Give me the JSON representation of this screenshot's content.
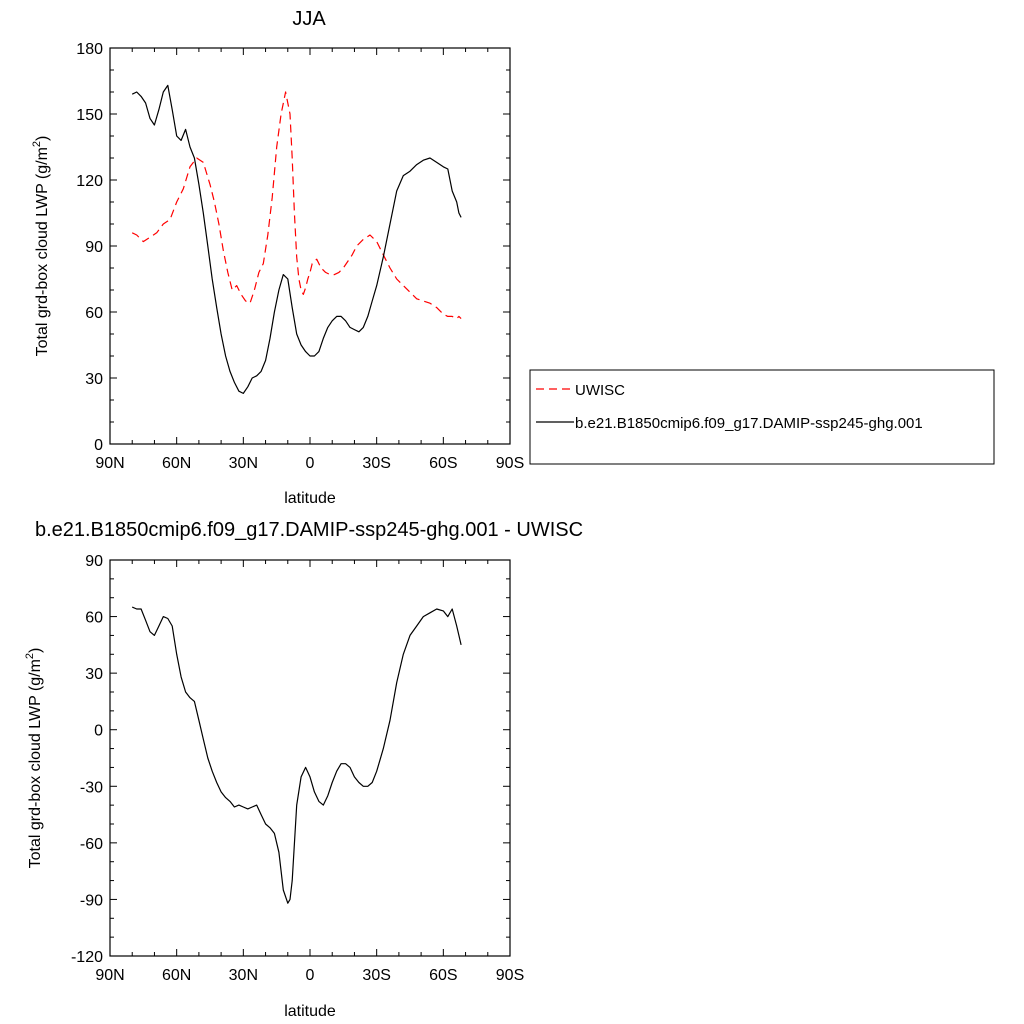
{
  "chart_data": [
    {
      "type": "line",
      "title": "JJA",
      "xlabel": "latitude",
      "ylabel": "Total grd-box cloud LWP (g/m²)",
      "ylabel_main": "Total grd-box cloud LWP (g/m",
      "ylabel_sup": "2",
      "ylabel_end": ")",
      "xlim": [
        90,
        -90
      ],
      "ylim": [
        0,
        180
      ],
      "x_ticks": [
        90,
        60,
        30,
        0,
        -30,
        -60,
        -90
      ],
      "x_tick_labels": [
        "90N",
        "60N",
        "30N",
        "0",
        "30S",
        "60S",
        "90S"
      ],
      "y_ticks": [
        0,
        30,
        60,
        90,
        120,
        150,
        180
      ],
      "y_tick_labels": [
        "0",
        "30",
        "60",
        "90",
        "120",
        "150",
        "180"
      ],
      "legend_position": "right",
      "series": [
        {
          "name": "UWISC",
          "color": "#ff0000",
          "dash": "dashed",
          "x": [
            80,
            78,
            75,
            72,
            69,
            66,
            63,
            60,
            57,
            54,
            51,
            48,
            45,
            43,
            41,
            39,
            37,
            35,
            33,
            31,
            29,
            27,
            25,
            23,
            21,
            19,
            17,
            15,
            13,
            11,
            9,
            8,
            7,
            6,
            5,
            4,
            3,
            2,
            1,
            0,
            -1,
            -3,
            -5,
            -7,
            -9,
            -11,
            -13,
            -15,
            -17,
            -19,
            -21,
            -24,
            -27,
            -30,
            -33,
            -36,
            -39,
            -42,
            -45,
            -48,
            -51,
            -54,
            -57,
            -60,
            -62,
            -64,
            -66,
            -67,
            -68
          ],
          "y": [
            96,
            95,
            92,
            94,
            96,
            100,
            102,
            110,
            116,
            126,
            130,
            128,
            118,
            110,
            100,
            88,
            78,
            70,
            72,
            68,
            65,
            64,
            70,
            78,
            82,
            95,
            112,
            135,
            150,
            160,
            150,
            130,
            105,
            85,
            75,
            70,
            68,
            71,
            75,
            78,
            82,
            84,
            80,
            78,
            77,
            77,
            78,
            80,
            83,
            86,
            90,
            93,
            95,
            92,
            86,
            80,
            75,
            72,
            69,
            66,
            65,
            64,
            62,
            59,
            58,
            58,
            57,
            58,
            57
          ]
        },
        {
          "name": "b.e21.B1850cmip6.f09_g17.DAMIP-ssp245-ghg.001",
          "color": "#000000",
          "dash": "solid",
          "x": [
            80,
            78,
            76,
            74,
            72,
            70,
            68,
            66,
            64,
            62,
            60,
            58,
            56,
            54,
            52,
            50,
            48,
            46,
            44,
            42,
            40,
            38,
            36,
            34,
            32,
            30,
            28,
            26,
            24,
            22,
            20,
            18,
            16,
            14,
            12,
            10,
            8,
            6,
            4,
            2,
            0,
            -2,
            -4,
            -6,
            -8,
            -10,
            -12,
            -14,
            -16,
            -18,
            -20,
            -22,
            -24,
            -26,
            -28,
            -30,
            -33,
            -36,
            -39,
            -42,
            -45,
            -48,
            -51,
            -54,
            -57,
            -60,
            -62,
            -64,
            -66,
            -67,
            -68
          ],
          "y": [
            159,
            160,
            158,
            155,
            148,
            145,
            152,
            160,
            163,
            152,
            140,
            138,
            143,
            135,
            130,
            118,
            105,
            90,
            75,
            62,
            50,
            40,
            33,
            28,
            24,
            23,
            26,
            30,
            31,
            33,
            38,
            48,
            60,
            70,
            77,
            75,
            62,
            50,
            45,
            42,
            40,
            40,
            42,
            48,
            53,
            56,
            58,
            58,
            56,
            53,
            52,
            51,
            53,
            58,
            65,
            72,
            85,
            100,
            115,
            122,
            124,
            127,
            129,
            130,
            128,
            126,
            125,
            115,
            110,
            105,
            103
          ]
        }
      ]
    },
    {
      "type": "line",
      "title": "b.e21.B1850cmip6.f09_g17.DAMIP-ssp245-ghg.001 - UWISC",
      "xlabel": "latitude",
      "ylabel": "Total grd-box cloud LWP (g/m²)",
      "ylabel_main": "Total grd-box cloud LWP (g/m",
      "ylabel_sup": "2",
      "ylabel_end": ")",
      "xlim": [
        90,
        -90
      ],
      "ylim": [
        -120,
        90
      ],
      "x_ticks": [
        90,
        60,
        30,
        0,
        -30,
        -60,
        -90
      ],
      "x_tick_labels": [
        "90N",
        "60N",
        "30N",
        "0",
        "30S",
        "60S",
        "90S"
      ],
      "y_ticks": [
        -120,
        -90,
        -60,
        -30,
        0,
        30,
        60,
        90
      ],
      "y_tick_labels": [
        "-120",
        "-90",
        "-60",
        "-30",
        "0",
        "30",
        "60",
        "90"
      ],
      "series": [
        {
          "color": "#000000",
          "dash": "solid",
          "x": [
            80,
            78,
            76,
            74,
            72,
            70,
            68,
            66,
            64,
            62,
            60,
            58,
            56,
            54,
            52,
            50,
            48,
            46,
            44,
            42,
            40,
            38,
            36,
            34,
            32,
            30,
            28,
            26,
            24,
            22,
            20,
            18,
            16,
            14,
            12,
            10,
            9,
            8,
            6,
            4,
            2,
            0,
            -2,
            -4,
            -6,
            -8,
            -10,
            -12,
            -14,
            -16,
            -18,
            -20,
            -22,
            -24,
            -26,
            -28,
            -30,
            -33,
            -36,
            -39,
            -42,
            -45,
            -48,
            -51,
            -54,
            -57,
            -60,
            -62,
            -64,
            -66,
            -67,
            -68
          ],
          "y": [
            65,
            64,
            64,
            58,
            52,
            50,
            55,
            60,
            59,
            55,
            40,
            28,
            20,
            17,
            15,
            5,
            -5,
            -15,
            -22,
            -28,
            -33,
            -36,
            -38,
            -41,
            -40,
            -41,
            -42,
            -41,
            -40,
            -45,
            -50,
            -52,
            -55,
            -65,
            -85,
            -92,
            -90,
            -80,
            -40,
            -25,
            -20,
            -25,
            -33,
            -38,
            -40,
            -35,
            -28,
            -22,
            -18,
            -18,
            -20,
            -25,
            -28,
            -30,
            -30,
            -28,
            -22,
            -10,
            5,
            25,
            40,
            50,
            55,
            60,
            62,
            64,
            63,
            60,
            64,
            55,
            50,
            45
          ]
        }
      ]
    }
  ]
}
